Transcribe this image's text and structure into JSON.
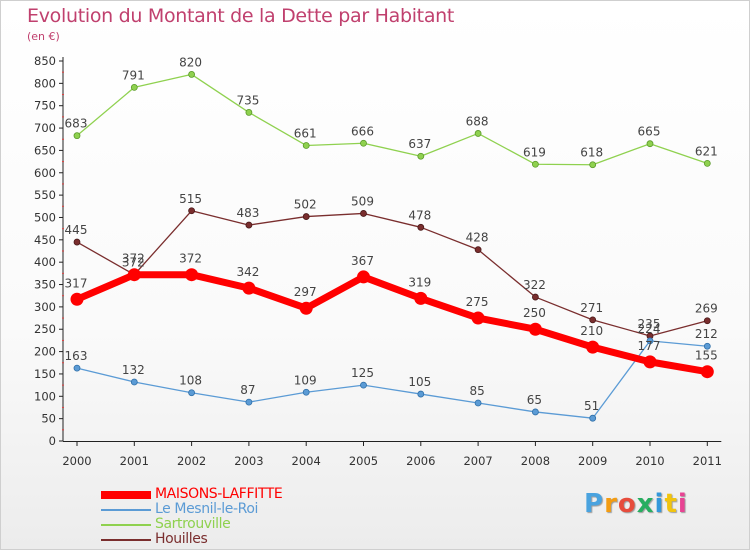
{
  "chart_data": {
    "type": "line",
    "title": "Evolution du Montant de la Dette par Habitant",
    "subtitle": "(en €)",
    "x": [
      "2000",
      "2001",
      "2002",
      "2003",
      "2004",
      "2005",
      "2006",
      "2007",
      "2008",
      "2009",
      "2010",
      "2011"
    ],
    "ylim": [
      0,
      850
    ],
    "yticks": [
      0,
      50,
      100,
      150,
      200,
      250,
      300,
      350,
      400,
      450,
      500,
      550,
      600,
      650,
      700,
      750,
      800,
      850
    ],
    "grid": false,
    "legend_position": "bottom-left",
    "series": [
      {
        "name": "MAISONS-LAFFITTE",
        "color": "#ff0000",
        "values": [
          317,
          372,
          372,
          342,
          297,
          367,
          319,
          275,
          250,
          210,
          177,
          155
        ]
      },
      {
        "name": "Le Mesnil-le-Roi",
        "color": "#5b9bd5",
        "values": [
          163,
          132,
          108,
          87,
          109,
          125,
          105,
          85,
          65,
          51,
          224,
          212
        ]
      },
      {
        "name": "Sartrouville",
        "color": "#8fd14f",
        "values": [
          683,
          791,
          820,
          735,
          661,
          666,
          637,
          688,
          619,
          618,
          665,
          621
        ]
      },
      {
        "name": "Houilles",
        "color": "#7a2e2e",
        "values": [
          445,
          372,
          515,
          483,
          502,
          509,
          478,
          428,
          322,
          271,
          235,
          269
        ]
      }
    ]
  },
  "logo": {
    "text": "Proxiti",
    "colors": [
      "#4aa3df",
      "#f39c12",
      "#e74c3c",
      "#27ae60",
      "#3498db",
      "#f1c40f",
      "#e84393"
    ]
  },
  "colors": {
    "title": "#c0406e",
    "axis": "#222222",
    "label": "#555555"
  }
}
